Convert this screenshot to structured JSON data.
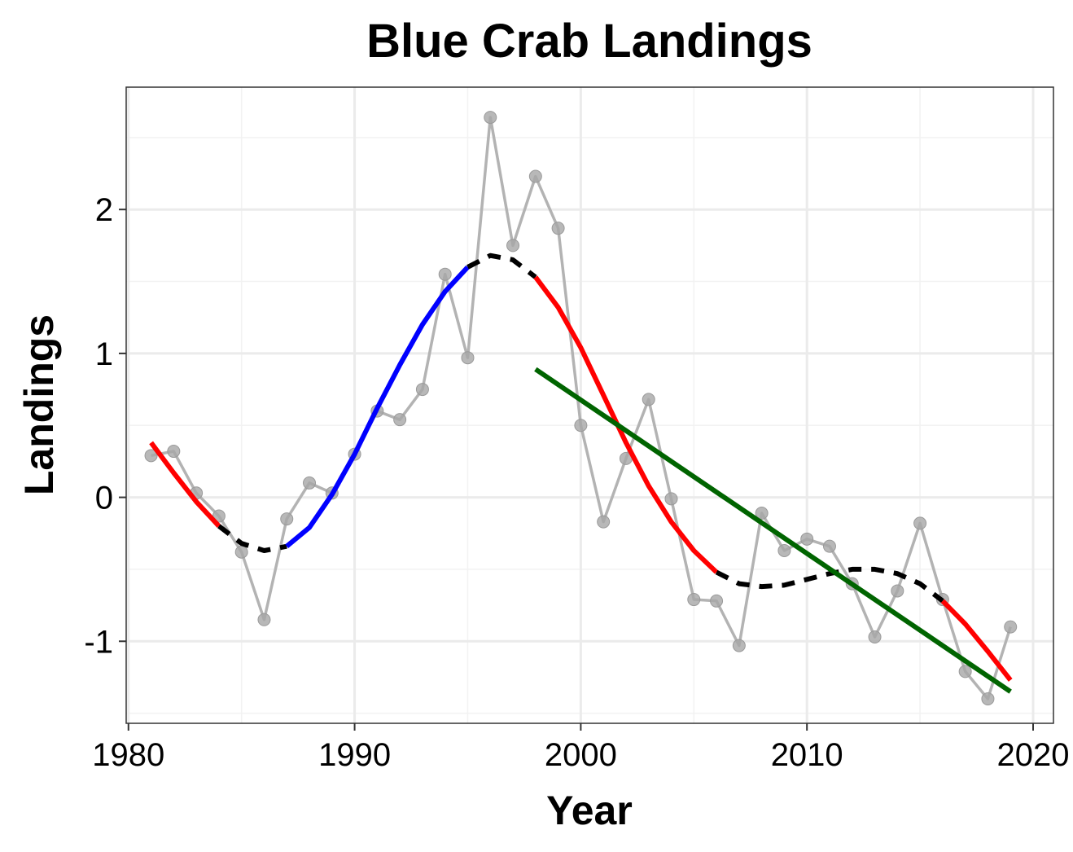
{
  "chart_data": {
    "type": "line",
    "title": "Blue Crab Landings",
    "xlabel": "Year",
    "ylabel": "Landings",
    "xlim": [
      1979.9,
      2020.9
    ],
    "ylim": [
      -1.57,
      2.85
    ],
    "x_ticks": [
      1980,
      1990,
      2000,
      2010,
      2020
    ],
    "x_tick_labels": [
      "1980",
      "1990",
      "2000",
      "2010",
      "2020"
    ],
    "y_ticks": [
      -1,
      0,
      1,
      2
    ],
    "y_tick_labels": [
      "-1",
      "0",
      "1",
      "2"
    ],
    "grid": true,
    "legend": "none",
    "colors": {
      "observed": "#b3b3b3",
      "decreasing": "#ff0000",
      "increasing": "#0000ff",
      "no_trend": "#000000",
      "linear_trend": "#006400"
    },
    "series": [
      {
        "role": "observed",
        "x": [
          1981,
          1982,
          1983,
          1984,
          1985,
          1986,
          1987,
          1988,
          1989,
          1990,
          1991,
          1992,
          1993,
          1994,
          1995,
          1996,
          1997,
          1998,
          1999,
          2000,
          2001,
          2002,
          2003,
          2004,
          2005,
          2006,
          2007,
          2008,
          2009,
          2010,
          2011,
          2012,
          2013,
          2014,
          2015,
          2016,
          2017,
          2018,
          2019
        ],
        "y": [
          0.29,
          0.32,
          0.03,
          -0.13,
          -0.38,
          -0.85,
          -0.15,
          0.1,
          0.03,
          0.3,
          0.6,
          0.54,
          0.75,
          1.55,
          0.97,
          2.64,
          1.75,
          2.23,
          1.87,
          0.5,
          -0.17,
          0.27,
          0.68,
          -0.01,
          -0.71,
          -0.72,
          -1.03,
          -0.11,
          -0.37,
          -0.29,
          -0.34,
          -0.6,
          -0.97,
          -0.65,
          -0.18,
          -0.71,
          -1.21,
          -1.4,
          -0.9
        ]
      },
      {
        "role": "smooth",
        "x": [
          1981,
          1982,
          1983,
          1984,
          1985,
          1986,
          1987,
          1988,
          1989,
          1990,
          1991,
          1992,
          1993,
          1994,
          1995,
          1996,
          1997,
          1998,
          1999,
          2000,
          2001,
          2002,
          2003,
          2004,
          2005,
          2006,
          2007,
          2008,
          2009,
          2010,
          2011,
          2012,
          2013,
          2014,
          2015,
          2016,
          2017,
          2018,
          2019
        ],
        "y": [
          0.38,
          0.17,
          -0.03,
          -0.2,
          -0.32,
          -0.37,
          -0.34,
          -0.21,
          0.02,
          0.3,
          0.62,
          0.92,
          1.2,
          1.43,
          1.6,
          1.68,
          1.65,
          1.53,
          1.32,
          1.04,
          0.71,
          0.38,
          0.08,
          -0.17,
          -0.37,
          -0.52,
          -0.6,
          -0.62,
          -0.61,
          -0.57,
          -0.53,
          -0.5,
          -0.5,
          -0.53,
          -0.6,
          -0.72,
          -0.88,
          -1.07,
          -1.27
        ]
      },
      {
        "role": "linear_trend",
        "x": [
          1998,
          2019
        ],
        "y": [
          0.89,
          -1.35
        ]
      }
    ],
    "smooth_segments": [
      {
        "trend": "decreasing",
        "from": 1981,
        "to": 1984
      },
      {
        "trend": "no_trend",
        "from": 1984,
        "to": 1987
      },
      {
        "trend": "increasing",
        "from": 1987,
        "to": 1995
      },
      {
        "trend": "no_trend",
        "from": 1995,
        "to": 1998
      },
      {
        "trend": "decreasing",
        "from": 1998,
        "to": 2006
      },
      {
        "trend": "no_trend",
        "from": 2006,
        "to": 2016
      },
      {
        "trend": "decreasing",
        "from": 2016,
        "to": 2019
      }
    ]
  }
}
